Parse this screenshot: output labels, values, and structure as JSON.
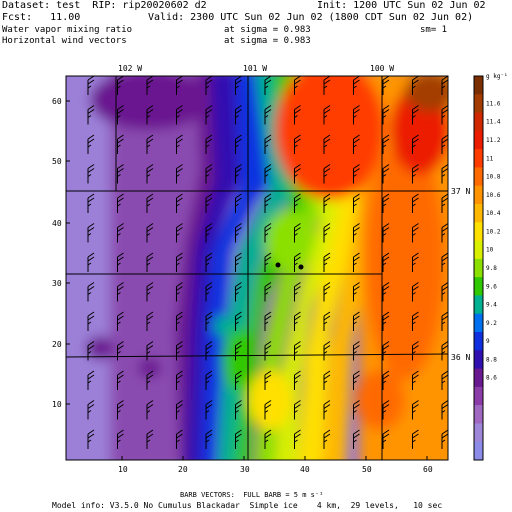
{
  "header": {
    "dataset": "Dataset: test  RIP: rip20020602 d2",
    "init": "Init: 1200 UTC Sun 02 Jun 02",
    "fcst": "Fcst:   11.00",
    "valid": "Valid: 2300 UTC Sun 02 Jun 02 (1800 CDT Sun 02 Jun 02)",
    "field1": "Water vapor mixing ratio",
    "field1_level": "at sigma = 0.983",
    "sm": "sm= 1",
    "field2": "Horizontal wind vectors",
    "field2_level": "at sigma = 0.983"
  },
  "map": {
    "lon_labels": [
      "102 W",
      "101 W",
      "100 W"
    ],
    "lat_labels": [
      "37 N",
      "36 N"
    ],
    "x_ticks": [
      "10",
      "20",
      "30",
      "40",
      "50",
      "60"
    ],
    "y_ticks": [
      "60",
      "50",
      "40",
      "30",
      "20",
      "10"
    ],
    "x_range": [
      1,
      64
    ],
    "y_range": [
      1,
      64
    ],
    "stations": 2
  },
  "colorbar": {
    "unit": "g kg⁻¹",
    "labels": [
      "11.6",
      "11.4",
      "11.2",
      "11",
      "10.8",
      "10.6",
      "10.4",
      "10.2",
      "10",
      "9.8",
      "9.6",
      "9.4",
      "9.2",
      "9",
      "8.8",
      "8.6"
    ],
    "colors": [
      "#7b2f00",
      "#a33c00",
      "#d02800",
      "#ec1c00",
      "#ff3c00",
      "#ff6a00",
      "#ff9400",
      "#ffb800",
      "#ffe000",
      "#d8f000",
      "#8ce000",
      "#30c800",
      "#00b090",
      "#0070f0",
      "#1030e0",
      "#3010b0",
      "#6a1890",
      "#8c3ca8",
      "#a068c0",
      "#9e86d8",
      "#8c8ce8"
    ]
  },
  "footer": {
    "barb": "BARB VECTORS:  FULL BARB = 5 m s⁻¹",
    "model": "Model info: V3.5.0 No Cumulus Blackadar  Simple ice    4 km,  29 levels,   10 sec"
  }
}
